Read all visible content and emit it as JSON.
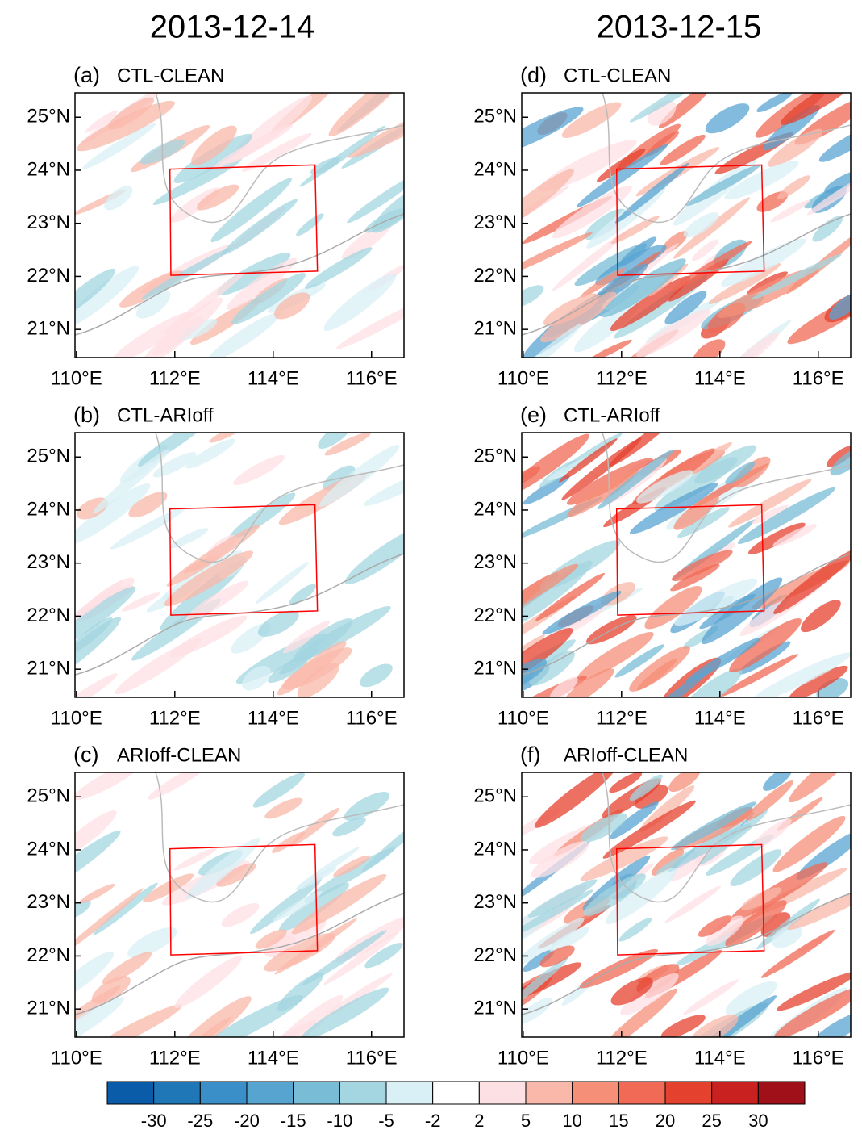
{
  "columns": [
    {
      "title": "2013-12-14",
      "panels": [
        {
          "label": "(a)",
          "name": "CTL-CLEAN"
        },
        {
          "label": "(b)",
          "name": "CTL-ARIoff"
        },
        {
          "label": "(c)",
          "name": "ARIoff-CLEAN"
        }
      ]
    },
    {
      "title": "2013-12-15",
      "panels": [
        {
          "label": "(d)",
          "name": "CTL-CLEAN"
        },
        {
          "label": "(e)",
          "name": "CTL-ARIoff"
        },
        {
          "label": "(f)",
          "name": "ARIoff-CLEAN"
        }
      ]
    }
  ],
  "axes": {
    "xlim": [
      109.97,
      116.66
    ],
    "ylim": [
      20.47,
      25.46
    ],
    "xticks": [
      {
        "value": 110,
        "label": "110°E"
      },
      {
        "value": 112,
        "label": "112°E"
      },
      {
        "value": 114,
        "label": "114°E"
      },
      {
        "value": 116,
        "label": "116°E"
      }
    ],
    "yticks": [
      {
        "value": 21,
        "label": "21°N"
      },
      {
        "value": 22,
        "label": "22°N"
      },
      {
        "value": 23,
        "label": "23°N"
      },
      {
        "value": 24,
        "label": "24°N"
      },
      {
        "value": 25,
        "label": "25°N"
      }
    ],
    "box": {
      "lon": [
        111.9,
        114.85,
        114.9,
        111.92
      ],
      "lat": [
        24.02,
        24.1,
        22.1,
        22.02
      ],
      "color": "#ff0000"
    }
  },
  "colorbar": {
    "levels": [
      -30,
      -25,
      -20,
      -15,
      -10,
      -5,
      -2,
      2,
      5,
      10,
      15,
      20,
      25,
      30
    ],
    "colors": [
      "#0b5ca8",
      "#1f77b8",
      "#3a8fc8",
      "#58a4d1",
      "#79bcd6",
      "#a3d6e0",
      "#d8f0f6",
      "#ffffff",
      "#fde0e4",
      "#f9b8aa",
      "#f58f78",
      "#f06a55",
      "#e5412f",
      "#c9211f",
      "#a01018"
    ]
  }
}
